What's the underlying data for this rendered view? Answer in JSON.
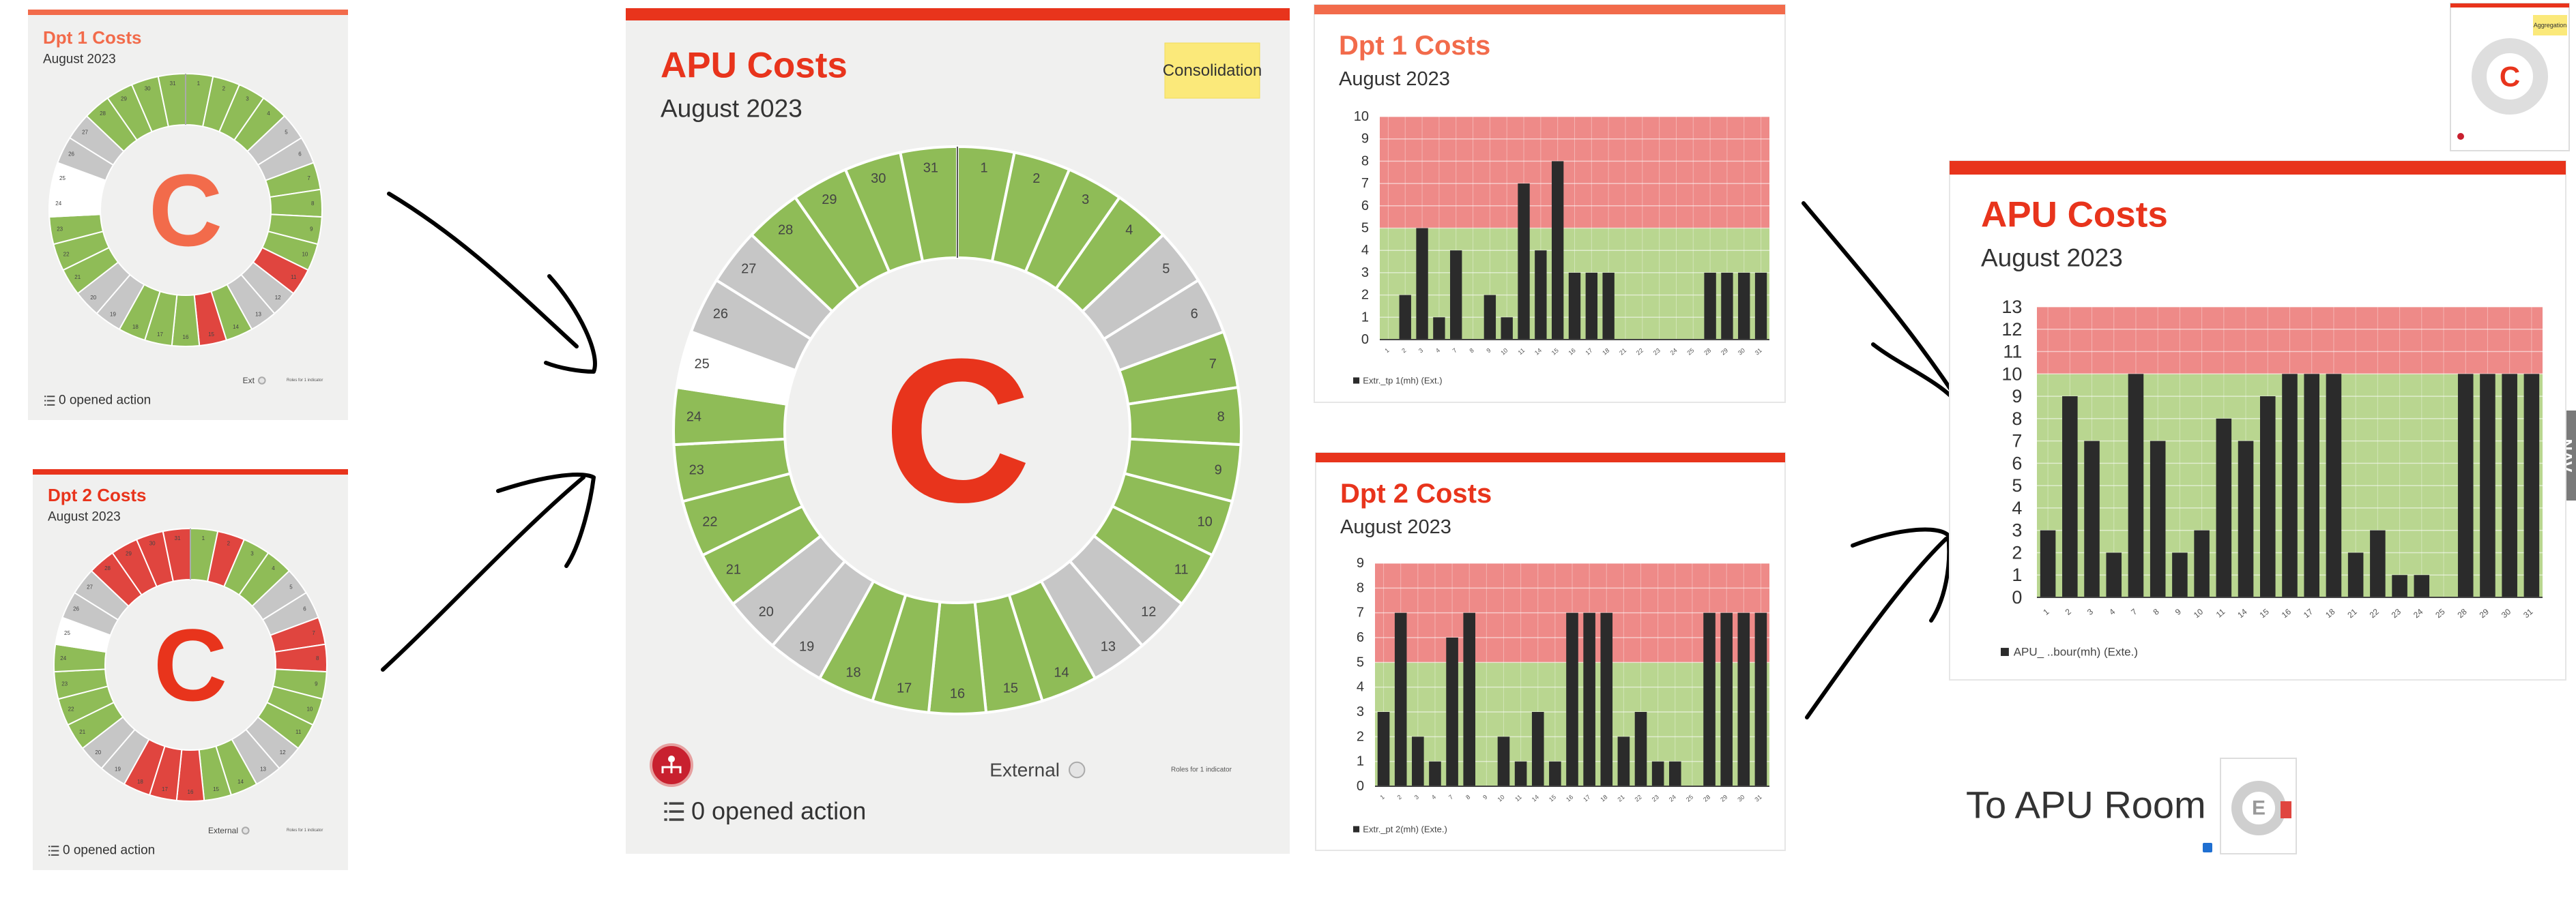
{
  "chart_data": [
    {
      "type": "wheel",
      "title": "Dpt 1 Costs",
      "subtitle": "August 2023",
      "letter": "C",
      "days": [
        1,
        2,
        3,
        4,
        5,
        6,
        7,
        8,
        9,
        10,
        11,
        12,
        13,
        14,
        15,
        16,
        17,
        18,
        19,
        20,
        21,
        22,
        23,
        24,
        25,
        26,
        27,
        28,
        29,
        30,
        31
      ],
      "colors": [
        "#8fbc57",
        "#8fbc57",
        "#8fbc57",
        "#8fbc57",
        "#c6c6c6",
        "#c6c6c6",
        "#8fbc57",
        "#8fbc57",
        "#8fbc57",
        "#8fbc57",
        "#e0453f",
        "#c6c6c6",
        "#c6c6c6",
        "#8fbc57",
        "#e0453f",
        "#8fbc57",
        "#8fbc57",
        "#8fbc57",
        "#c6c6c6",
        "#c6c6c6",
        "#8fbc57",
        "#8fbc57",
        "#8fbc57",
        "#ffffff",
        "#ffffff",
        "#c6c6c6",
        "#c6c6c6",
        "#8fbc57",
        "#8fbc57",
        "#8fbc57",
        "#8fbc57"
      ],
      "scope": "Ext",
      "roles": "Roles for 1 indicator",
      "actions": "0 opened action"
    },
    {
      "type": "wheel",
      "title": "Dpt 2 Costs",
      "subtitle": "August 2023",
      "letter": "C",
      "days": [
        1,
        2,
        3,
        4,
        5,
        6,
        7,
        8,
        9,
        10,
        11,
        12,
        13,
        14,
        15,
        16,
        17,
        18,
        19,
        20,
        21,
        22,
        23,
        24,
        25,
        26,
        27,
        28,
        29,
        30,
        31
      ],
      "colors": [
        "#8fbc57",
        "#e0453f",
        "#8fbc57",
        "#8fbc57",
        "#c6c6c6",
        "#c6c6c6",
        "#e0453f",
        "#e0453f",
        "#8fbc57",
        "#8fbc57",
        "#8fbc57",
        "#c6c6c6",
        "#c6c6c6",
        "#8fbc57",
        "#8fbc57",
        "#e0453f",
        "#e0453f",
        "#e0453f",
        "#c6c6c6",
        "#c6c6c6",
        "#8fbc57",
        "#8fbc57",
        "#8fbc57",
        "#8fbc57",
        "#ffffff",
        "#c6c6c6",
        "#c6c6c6",
        "#e0453f",
        "#e0453f",
        "#e0453f",
        "#e0453f"
      ],
      "scope": "External",
      "roles": "Roles for 1 indicator",
      "actions": "0 opened action"
    },
    {
      "type": "wheel",
      "title": "APU Costs",
      "subtitle": "August 2023",
      "letter": "C",
      "sticker": "Consolidation",
      "days": [
        1,
        2,
        3,
        4,
        5,
        6,
        7,
        8,
        9,
        10,
        11,
        12,
        13,
        14,
        15,
        16,
        17,
        18,
        19,
        20,
        21,
        22,
        23,
        24,
        25,
        26,
        27,
        28,
        29,
        30,
        31
      ],
      "colors": [
        "#8fbc57",
        "#8fbc57",
        "#8fbc57",
        "#8fbc57",
        "#c6c6c6",
        "#c6c6c6",
        "#8fbc57",
        "#8fbc57",
        "#8fbc57",
        "#8fbc57",
        "#8fbc57",
        "#c6c6c6",
        "#c6c6c6",
        "#8fbc57",
        "#8fbc57",
        "#8fbc57",
        "#8fbc57",
        "#8fbc57",
        "#c6c6c6",
        "#c6c6c6",
        "#8fbc57",
        "#8fbc57",
        "#8fbc57",
        "#8fbc57",
        "#ffffff",
        "#c6c6c6",
        "#c6c6c6",
        "#8fbc57",
        "#8fbc57",
        "#8fbc57",
        "#8fbc57"
      ],
      "scope": "External",
      "roles": "Roles for 1 indicator",
      "actions": "0 opened action"
    },
    {
      "type": "bar",
      "title": "Dpt 1 Costs",
      "subtitle": "August 2023",
      "categories": [
        1,
        2,
        3,
        4,
        7,
        8,
        9,
        10,
        11,
        14,
        15,
        16,
        17,
        18,
        21,
        22,
        23,
        24,
        25,
        28,
        29,
        30,
        31
      ],
      "series": [
        {
          "name": "Extr._tp 1(mh) (Ext.)",
          "color": "#2b2b2b",
          "values": [
            0,
            2,
            5,
            1,
            4,
            0,
            2,
            1,
            7,
            4,
            8,
            3,
            3,
            3,
            0,
            0,
            0,
            0,
            0,
            3,
            3,
            3,
            3
          ]
        }
      ],
      "zones": [
        {
          "range": [
            0,
            5
          ],
          "color": "#b9d690"
        },
        {
          "range": [
            5,
            10
          ],
          "color": "#ee8a88"
        }
      ],
      "ylim": [
        0,
        10
      ],
      "yticks": [
        0,
        1,
        2,
        3,
        4,
        5,
        6,
        7,
        8,
        9,
        10
      ],
      "grid": true
    },
    {
      "type": "bar",
      "title": "Dpt 2 Costs",
      "subtitle": "August 2023",
      "categories": [
        1,
        2,
        3,
        4,
        7,
        8,
        9,
        10,
        11,
        14,
        15,
        16,
        17,
        18,
        21,
        22,
        23,
        24,
        25,
        28,
        29,
        30,
        31
      ],
      "series": [
        {
          "name": "Extr._pt 2(mh) (Exte.)",
          "color": "#2b2b2b",
          "values": [
            3,
            7,
            2,
            1,
            6,
            7,
            0,
            2,
            1,
            3,
            1,
            7,
            7,
            7,
            2,
            3,
            1,
            1,
            0,
            7,
            7,
            7,
            7
          ]
        }
      ],
      "zones": [
        {
          "range": [
            0,
            5
          ],
          "color": "#b9d690"
        },
        {
          "range": [
            5,
            9
          ],
          "color": "#ee8a88"
        }
      ],
      "ylim": [
        0,
        9
      ],
      "yticks": [
        0,
        1,
        2,
        3,
        4,
        5,
        6,
        7,
        8,
        9
      ],
      "grid": true
    },
    {
      "type": "bar",
      "title": "APU Costs",
      "subtitle": "August 2023",
      "categories": [
        1,
        2,
        3,
        4,
        7,
        8,
        9,
        10,
        11,
        14,
        15,
        16,
        17,
        18,
        21,
        22,
        23,
        24,
        25,
        28,
        29,
        30,
        31
      ],
      "series": [
        {
          "name": "APU_ ..bour(mh) (Exte.)",
          "color": "#2b2b2b",
          "values": [
            3,
            9,
            7,
            2,
            10,
            7,
            2,
            3,
            8,
            7,
            9,
            10,
            10,
            10,
            2,
            3,
            1,
            1,
            0,
            10,
            10,
            10,
            10
          ]
        }
      ],
      "zones": [
        {
          "range": [
            0,
            10
          ],
          "color": "#b9d690"
        },
        {
          "range": [
            10,
            13
          ],
          "color": "#ee8a88"
        }
      ],
      "ylim": [
        0,
        13
      ],
      "yticks": [
        0,
        1,
        2,
        3,
        4,
        5,
        6,
        7,
        8,
        9,
        10,
        11,
        12,
        13
      ],
      "grid": true
    }
  ],
  "thumbnail": {
    "sticker": "Aggregation",
    "letter": "C"
  },
  "link": {
    "label": "To APU Room",
    "letter": "E"
  },
  "nav": "NAV"
}
